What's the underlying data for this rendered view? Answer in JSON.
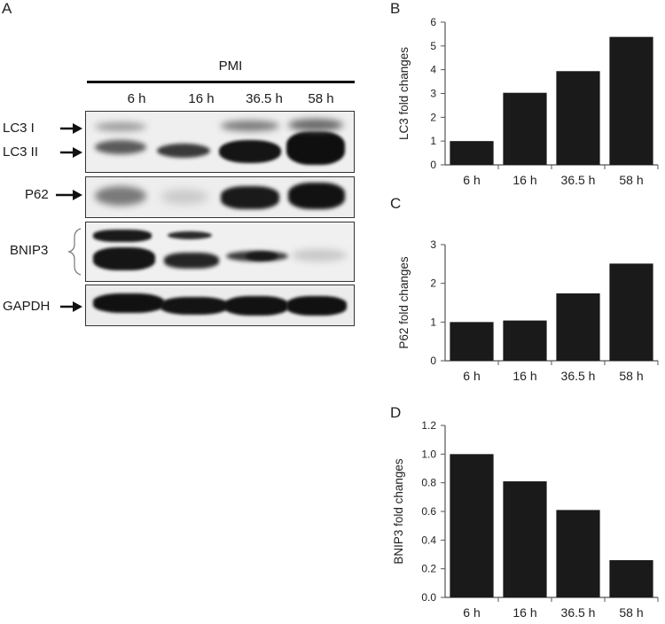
{
  "figure": {
    "panel_a": {
      "letter": "A",
      "header": "PMI",
      "lanes": [
        "6 h",
        "16 h",
        "36.5 h",
        "58 h"
      ],
      "rows": [
        {
          "labels": [
            "LC3 I",
            "LC3 II"
          ]
        },
        {
          "labels": [
            "P62"
          ]
        },
        {
          "labels": [
            "BNIP3"
          ]
        },
        {
          "labels": [
            "GAPDH"
          ]
        }
      ]
    }
  },
  "chart_data": [
    {
      "panel": "B",
      "type": "bar",
      "categories": [
        "6 h",
        "16 h",
        "36.5 h",
        "58 h"
      ],
      "values": [
        1.0,
        3.03,
        3.94,
        5.38
      ],
      "title": "",
      "xlabel": "",
      "ylabel": "LC3 fold changes",
      "ylim": [
        0,
        6
      ],
      "yticks": [
        "0",
        "1",
        "2",
        "3",
        "4",
        "5",
        "6"
      ],
      "bar_color": "#1a1a1a",
      "grid": false
    },
    {
      "panel": "C",
      "type": "bar",
      "categories": [
        "6 h",
        "16 h",
        "36.5 h",
        "58 h"
      ],
      "values": [
        1.0,
        1.04,
        1.74,
        2.51
      ],
      "title": "",
      "xlabel": "",
      "ylabel": "P62 fold changes",
      "ylim": [
        0,
        3
      ],
      "yticks": [
        "0",
        "1",
        "2",
        "3"
      ],
      "bar_color": "#1a1a1a",
      "grid": false
    },
    {
      "panel": "D",
      "type": "bar",
      "categories": [
        "6 h",
        "16 h",
        "36.5 h",
        "58 h"
      ],
      "values": [
        1.0,
        0.81,
        0.61,
        0.26
      ],
      "title": "",
      "xlabel": "",
      "ylabel": "BNIP3 fold changes",
      "ylim": [
        0,
        1.2
      ],
      "yticks": [
        "0.0",
        "0.2",
        "0.4",
        "0.6",
        "0.8",
        "1.0",
        "1.2"
      ],
      "bar_color": "#1a1a1a",
      "grid": false
    }
  ]
}
